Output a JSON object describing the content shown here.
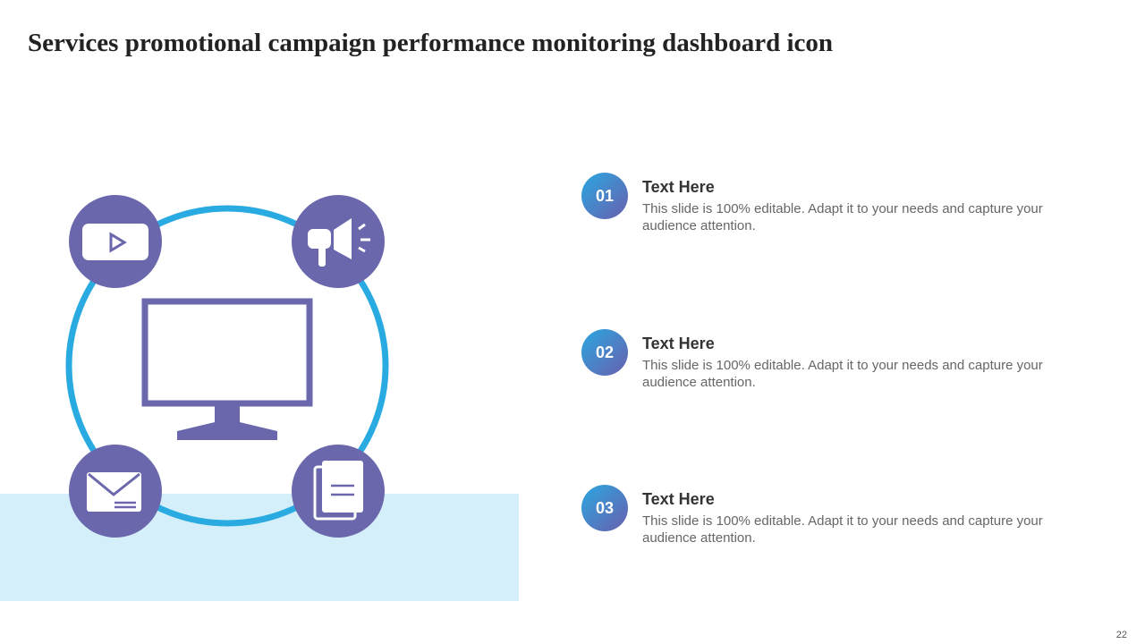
{
  "title": "Services promotional campaign performance monitoring dashboard icon",
  "colors": {
    "ring": "#29abe2",
    "icon": "#6a67ac",
    "band": "#d4eff9"
  },
  "icons": [
    "video-play-icon",
    "megaphone-icon",
    "envelope-icon",
    "documents-icon",
    "monitor-icon"
  ],
  "items": [
    {
      "number": "01",
      "heading": "Text Here",
      "text": "This slide is 100% editable. Adapt it to your needs and capture your audience attention."
    },
    {
      "number": "02",
      "heading": "Text Here",
      "text": "This slide is 100% editable. Adapt it to your needs and capture your audience attention."
    },
    {
      "number": "03",
      "heading": "Text Here",
      "text": "This slide is 100% editable. Adapt it to your needs and capture your audience attention."
    }
  ],
  "page_number": "22"
}
